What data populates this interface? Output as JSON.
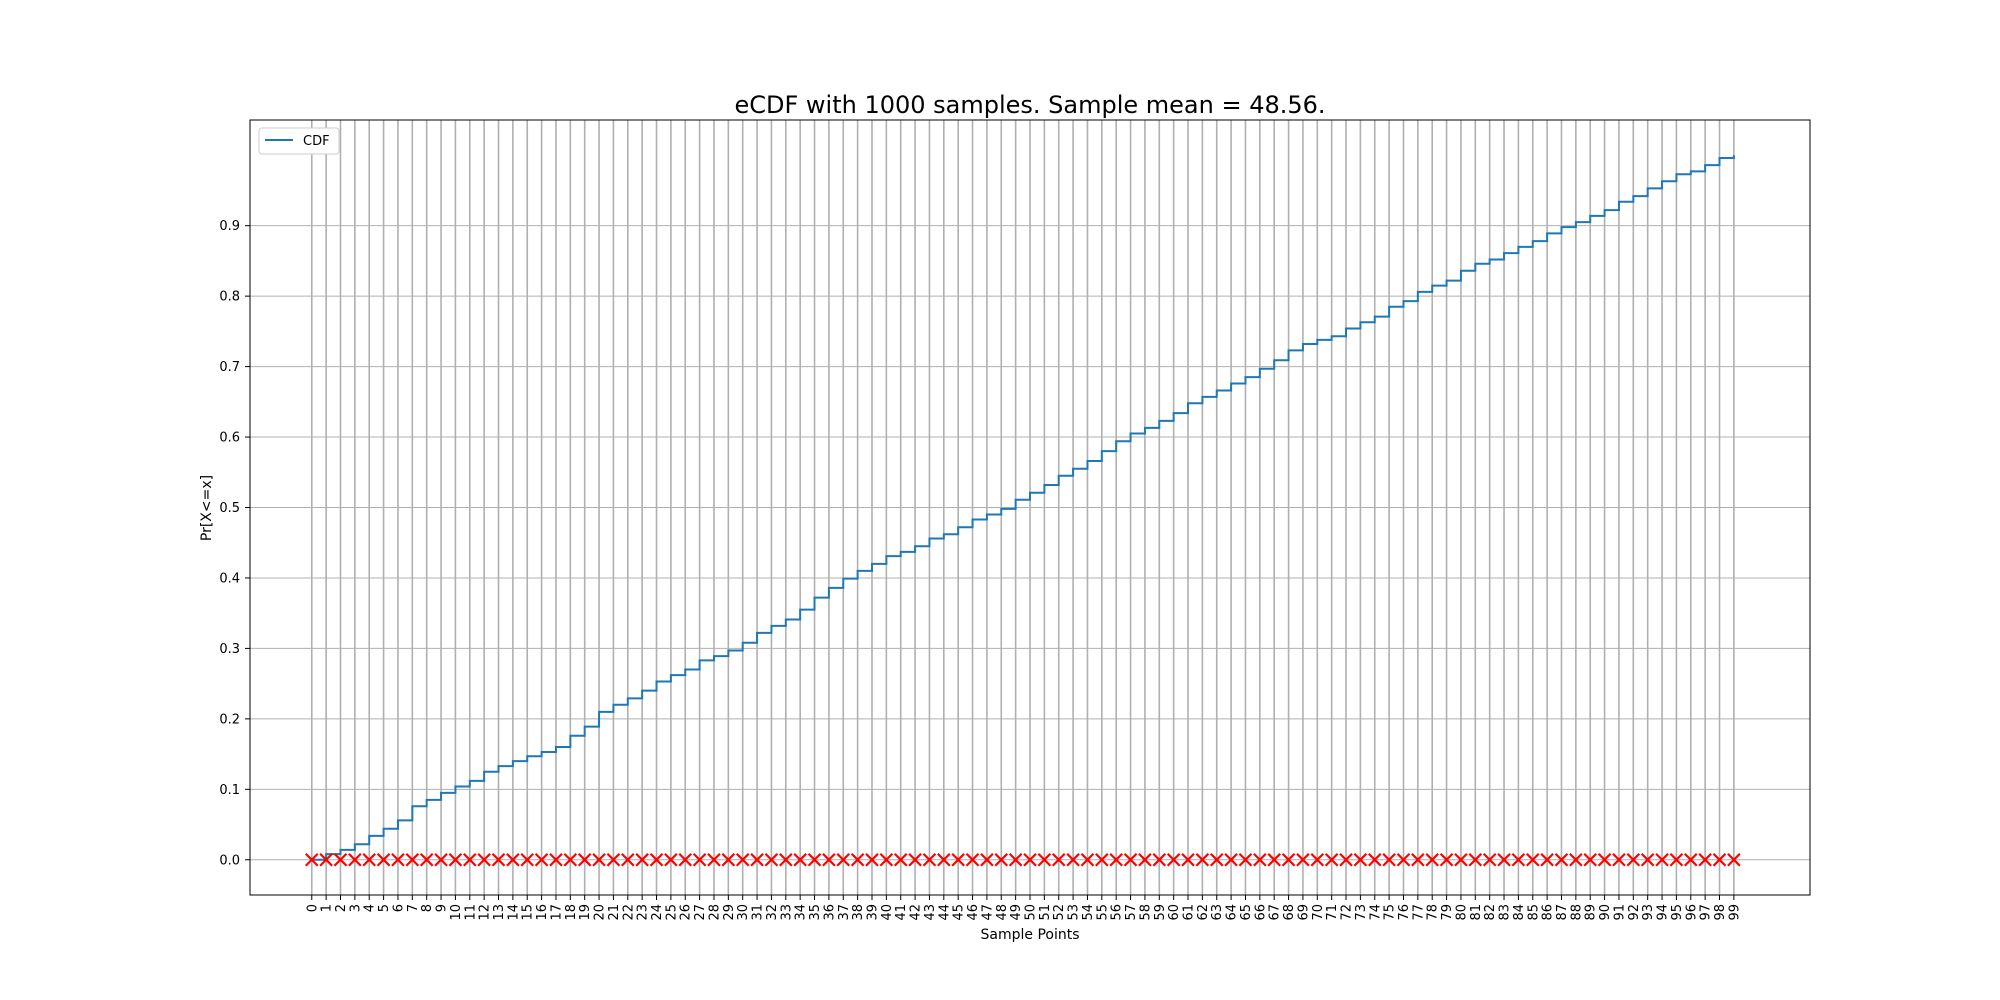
{
  "chart_data": {
    "type": "line",
    "title": "eCDF with 1000 samples. Sample mean = 48.56.",
    "xlabel": "Sample Points",
    "ylabel": "Pr[X<=x]",
    "x_ticks": [
      0,
      1,
      2,
      3,
      4,
      5,
      6,
      7,
      8,
      9,
      10,
      11,
      12,
      13,
      14,
      15,
      16,
      17,
      18,
      19,
      20,
      21,
      22,
      23,
      24,
      25,
      26,
      27,
      28,
      29,
      30,
      31,
      32,
      33,
      34,
      35,
      36,
      37,
      38,
      39,
      40,
      41,
      42,
      43,
      44,
      45,
      46,
      47,
      48,
      49,
      50,
      51,
      52,
      53,
      54,
      55,
      56,
      57,
      58,
      59,
      60,
      61,
      62,
      63,
      64,
      65,
      66,
      67,
      68,
      69,
      70,
      71,
      72,
      73,
      74,
      75,
      76,
      77,
      78,
      79,
      80,
      81,
      82,
      83,
      84,
      85,
      86,
      87,
      88,
      89,
      90,
      91,
      92,
      93,
      94,
      95,
      96,
      97,
      98,
      99
    ],
    "y_ticks": [
      "0.0",
      "0.1",
      "0.2",
      "0.3",
      "0.4",
      "0.5",
      "0.6",
      "0.7",
      "0.8",
      "0.9"
    ],
    "xlim": [
      -4.3,
      104.3
    ],
    "ylim": [
      -0.05,
      1.05
    ],
    "grid": true,
    "legend_position": "top-left",
    "series": [
      {
        "name": "CDF",
        "style": "step",
        "color": "#1f77b4",
        "x": [
          0,
          1,
          2,
          3,
          4,
          5,
          6,
          7,
          8,
          9,
          10,
          11,
          12,
          13,
          14,
          15,
          16,
          17,
          18,
          19,
          20,
          21,
          22,
          23,
          24,
          25,
          26,
          27,
          28,
          29,
          30,
          31,
          32,
          33,
          34,
          35,
          36,
          37,
          38,
          39,
          40,
          41,
          42,
          43,
          44,
          45,
          46,
          47,
          48,
          49,
          50,
          51,
          52,
          53,
          54,
          55,
          56,
          57,
          58,
          59,
          60,
          61,
          62,
          63,
          64,
          65,
          66,
          67,
          68,
          69,
          70,
          71,
          72,
          73,
          74,
          75,
          76,
          77,
          78,
          79,
          80,
          81,
          82,
          83,
          84,
          85,
          86,
          87,
          88,
          89,
          90,
          91,
          92,
          93,
          94,
          95,
          96,
          97,
          98,
          99
        ],
        "y": [
          0.0,
          0.008,
          0.014,
          0.022,
          0.034,
          0.044,
          0.056,
          0.076,
          0.085,
          0.095,
          0.104,
          0.112,
          0.125,
          0.133,
          0.14,
          0.147,
          0.153,
          0.16,
          0.176,
          0.189,
          0.21,
          0.22,
          0.229,
          0.24,
          0.253,
          0.262,
          0.27,
          0.283,
          0.289,
          0.297,
          0.308,
          0.322,
          0.332,
          0.341,
          0.355,
          0.372,
          0.386,
          0.399,
          0.41,
          0.42,
          0.431,
          0.437,
          0.445,
          0.456,
          0.462,
          0.472,
          0.483,
          0.49,
          0.498,
          0.511,
          0.521,
          0.532,
          0.545,
          0.555,
          0.566,
          0.58,
          0.594,
          0.605,
          0.613,
          0.623,
          0.634,
          0.648,
          0.657,
          0.666,
          0.676,
          0.685,
          0.697,
          0.709,
          0.723,
          0.732,
          0.738,
          0.743,
          0.754,
          0.763,
          0.771,
          0.785,
          0.793,
          0.806,
          0.815,
          0.822,
          0.836,
          0.846,
          0.852,
          0.861,
          0.87,
          0.878,
          0.889,
          0.898,
          0.905,
          0.914,
          0.922,
          0.934,
          0.942,
          0.953,
          0.963,
          0.973,
          0.977,
          0.986,
          0.996,
          1.0
        ]
      },
      {
        "marker": "x",
        "color": "#ff0000",
        "x": [
          0,
          1,
          2,
          3,
          4,
          5,
          6,
          7,
          8,
          9,
          10,
          11,
          12,
          13,
          14,
          15,
          16,
          17,
          18,
          19,
          20,
          21,
          22,
          23,
          24,
          25,
          26,
          27,
          28,
          29,
          30,
          31,
          32,
          33,
          34,
          35,
          36,
          37,
          38,
          39,
          40,
          41,
          42,
          43,
          44,
          45,
          46,
          47,
          48,
          49,
          50,
          51,
          52,
          53,
          54,
          55,
          56,
          57,
          58,
          59,
          60,
          61,
          62,
          63,
          64,
          65,
          66,
          67,
          68,
          69,
          70,
          71,
          72,
          73,
          74,
          75,
          76,
          77,
          78,
          79,
          80,
          81,
          82,
          83,
          84,
          85,
          86,
          87,
          88,
          89,
          90,
          91,
          92,
          93,
          94,
          95,
          96,
          97,
          98,
          99
        ],
        "y_constant": 0
      }
    ]
  }
}
